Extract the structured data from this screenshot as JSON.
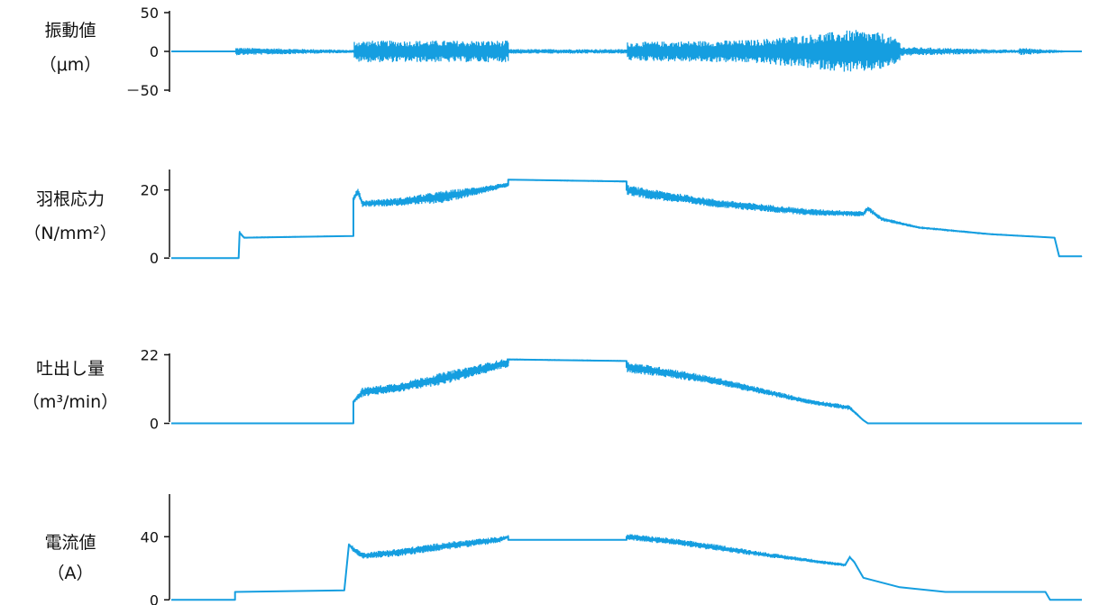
{
  "line_color": "#159ee0",
  "axis_color": "#111111",
  "chart_data": [
    {
      "type": "line",
      "ylabel_lines": [
        "振動値",
        "（μm）"
      ],
      "yticks": [
        {
          "value": 50,
          "label": "50"
        },
        {
          "value": 0,
          "label": "0"
        },
        {
          "value": -50,
          "label": "－50"
        }
      ],
      "ylim": [
        -50,
        50
      ],
      "x": [
        0.0,
        0.07,
        0.071,
        0.2,
        0.2,
        0.37,
        0.37,
        0.5,
        0.5,
        0.64,
        0.7,
        0.75,
        0.78,
        0.8,
        0.8,
        0.93,
        0.93,
        1.0
      ],
      "y": [
        0,
        0,
        0,
        0,
        0,
        0,
        0,
        0,
        0,
        0,
        0,
        0,
        0,
        0,
        0,
        0,
        0,
        0
      ],
      "amp": [
        0,
        0,
        5,
        2,
        14,
        14,
        3,
        3,
        12,
        15,
        22,
        28,
        24,
        14,
        6,
        2,
        5,
        0
      ]
    },
    {
      "type": "line",
      "ylabel_lines": [
        "羽根応力",
        "（N/mm²）"
      ],
      "yticks": [
        {
          "value": 20,
          "label": "20"
        },
        {
          "value": 0,
          "label": "0"
        }
      ],
      "ylim": [
        -1,
        26
      ],
      "x": [
        0.0,
        0.074,
        0.075,
        0.08,
        0.2,
        0.2,
        0.205,
        0.21,
        0.25,
        0.3,
        0.37,
        0.37,
        0.5,
        0.5,
        0.52,
        0.6,
        0.7,
        0.76,
        0.765,
        0.78,
        0.82,
        0.9,
        0.97,
        0.975,
        1.0
      ],
      "y": [
        0,
        0,
        7.5,
        6.0,
        6.5,
        17.5,
        19.5,
        16.0,
        16.5,
        18.0,
        21.5,
        23.0,
        22.5,
        20.0,
        19.0,
        16.0,
        13.5,
        13.0,
        14.5,
        11.5,
        9.0,
        7.0,
        6.0,
        0.5,
        0.5
      ],
      "amp": [
        0,
        0,
        0.5,
        0.3,
        0.2,
        1.0,
        1.0,
        1.0,
        1.2,
        1.8,
        0.6,
        0.2,
        0.3,
        1.5,
        1.5,
        1.2,
        1.0,
        0.8,
        0.8,
        0.6,
        0.4,
        0.3,
        0.2,
        0.1,
        0.1
      ]
    },
    {
      "type": "line",
      "ylabel_lines": [
        "吐出し量",
        "（m³/min）"
      ],
      "yticks": [
        {
          "value": 22,
          "label": "22"
        },
        {
          "value": 0,
          "label": "0"
        }
      ],
      "ylim": [
        -1,
        23
      ],
      "x": [
        0.0,
        0.2,
        0.2,
        0.21,
        0.25,
        0.3,
        0.37,
        0.37,
        0.5,
        0.5,
        0.55,
        0.6,
        0.7,
        0.745,
        0.76,
        0.765,
        1.0
      ],
      "y": [
        0,
        0,
        7.0,
        10.0,
        11.5,
        14.5,
        19.5,
        20.5,
        20.0,
        18.0,
        16.0,
        13.5,
        7.0,
        5.0,
        1.0,
        0,
        0
      ],
      "amp": [
        0,
        0,
        0.5,
        1.5,
        1.5,
        2.0,
        1.5,
        0.3,
        0.3,
        1.8,
        1.5,
        1.2,
        0.8,
        0.8,
        0.3,
        0,
        0
      ]
    },
    {
      "type": "line",
      "ylabel_lines": [
        "電流値",
        "（A）"
      ],
      "yticks": [
        {
          "value": 40,
          "label": "40"
        },
        {
          "value": 0,
          "label": "0"
        }
      ],
      "ylim": [
        -1,
        67
      ],
      "x": [
        0.0,
        0.07,
        0.07,
        0.19,
        0.195,
        0.2,
        0.21,
        0.25,
        0.3,
        0.36,
        0.37,
        0.37,
        0.5,
        0.5,
        0.55,
        0.6,
        0.66,
        0.74,
        0.745,
        0.75,
        0.76,
        0.8,
        0.85,
        0.96,
        0.965,
        1.0
      ],
      "y": [
        0,
        0,
        5,
        6,
        35,
        32,
        28,
        30,
        34,
        38,
        40,
        38,
        38,
        40,
        37,
        33,
        28,
        22,
        27,
        24,
        14,
        8,
        5,
        5,
        0,
        0
      ],
      "amp": [
        0,
        0,
        0.3,
        0.3,
        1.0,
        2.0,
        2.0,
        2.5,
        2.5,
        2.0,
        1.0,
        0.4,
        0.4,
        2.0,
        2.0,
        2.0,
        1.5,
        1.0,
        1.0,
        0.8,
        0.5,
        0.3,
        0.3,
        0.2,
        0,
        0
      ]
    }
  ]
}
